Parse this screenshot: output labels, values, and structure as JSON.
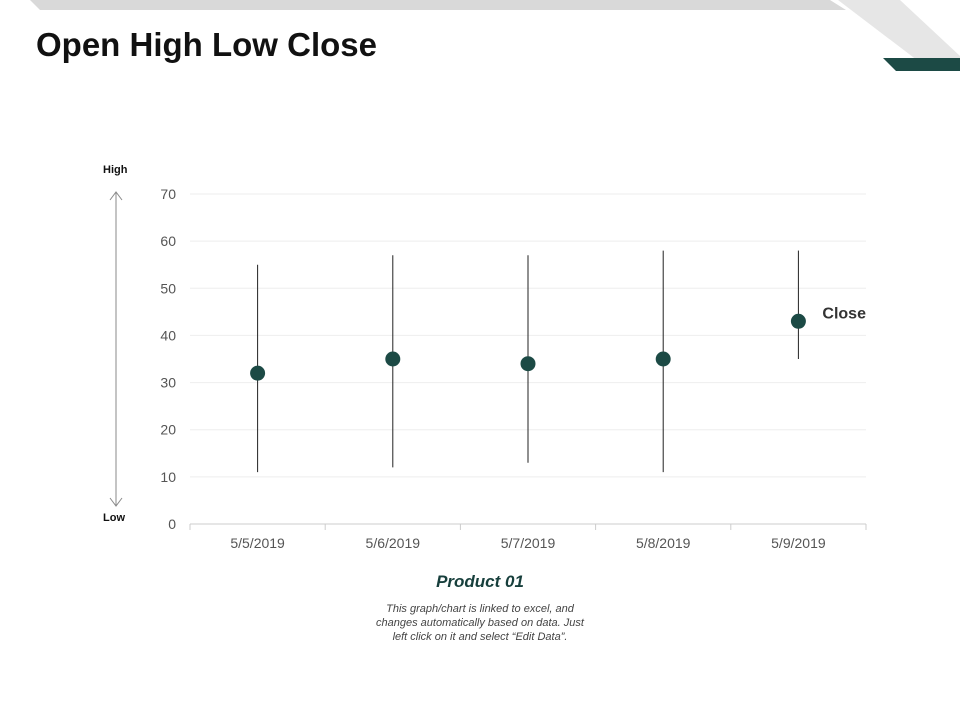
{
  "slide": {
    "title": "Open High Low Close"
  },
  "range_indicator": {
    "high_label": "High",
    "low_label": "Low"
  },
  "product": {
    "name": "Product 01",
    "description": "This graph/chart is linked to excel, and changes automatically based on data. Just left click on it and select “Edit Data”."
  },
  "colors": {
    "accent": "#1c4a45",
    "band_light": "#d9d9d9",
    "gridline": "#eeeeee",
    "axis": "#cccccc",
    "tick_text": "#555555"
  },
  "chart_data": {
    "type": "stock-hlc",
    "title": "",
    "xlabel": "",
    "ylabel": "",
    "categories": [
      "5/5/2019",
      "5/6/2019",
      "5/7/2019",
      "5/8/2019",
      "5/9/2019"
    ],
    "ylim": [
      0,
      70
    ],
    "yticks": [
      0,
      10,
      20,
      30,
      40,
      50,
      60,
      70
    ],
    "grid": true,
    "series": [
      {
        "name": "High",
        "values": [
          55,
          57,
          57,
          58,
          58
        ]
      },
      {
        "name": "Low",
        "values": [
          11,
          12,
          13,
          11,
          35
        ]
      },
      {
        "name": "Close",
        "values": [
          32,
          35,
          34,
          35,
          43
        ]
      }
    ],
    "annotations": [
      {
        "text": "Close",
        "category": "5/9/2019"
      }
    ]
  }
}
